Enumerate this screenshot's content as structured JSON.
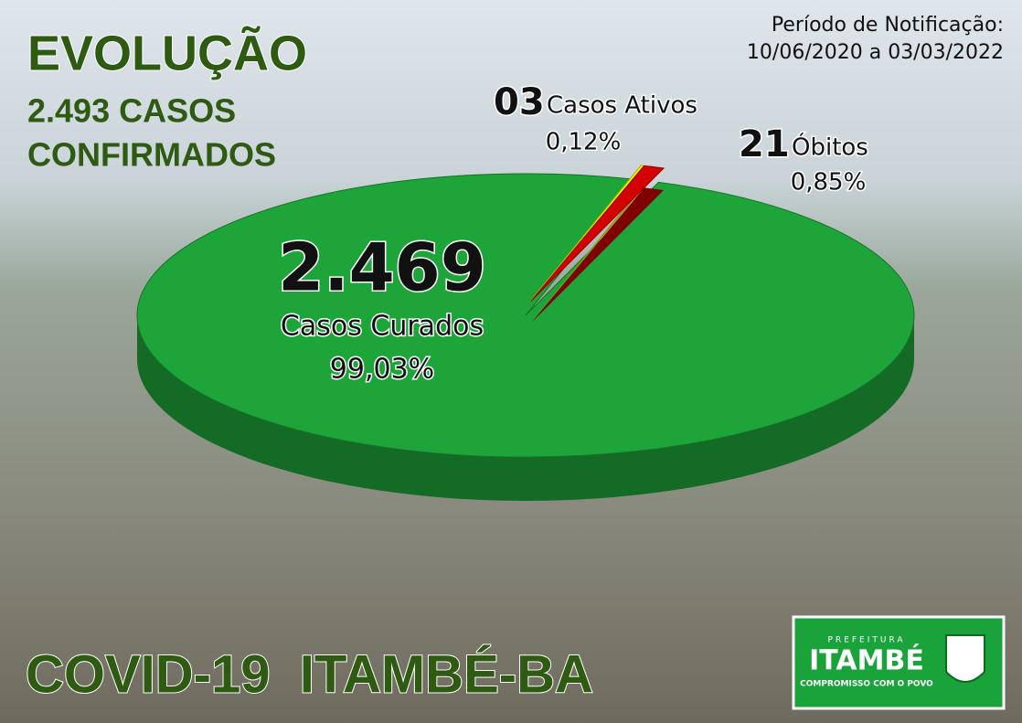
{
  "chart_data": {
    "type": "pie",
    "title": "EVOLUÇÃO",
    "subtitle_lines": [
      "2.493 CASOS",
      "CONFIRMADOS"
    ],
    "period_label": "Período de Notificação:",
    "period": "10/06/2020 a 03/03/2022",
    "footer": "COVID-19  ITAMBÉ-BA",
    "categories": [
      "Casos Curados",
      "Casos Ativos",
      "Óbitos"
    ],
    "values": [
      2469,
      3,
      21
    ],
    "value_labels": [
      "2.469",
      "03",
      "21"
    ],
    "percent_labels": [
      "99,03%",
      "0,12%",
      "0,85%"
    ],
    "colors": [
      "#1ea53a",
      "#ffff00",
      "#d40000"
    ]
  },
  "logo": {
    "top": "PREFEITURA",
    "name": "ITAMBÉ",
    "motto": "COMPROMISSO COM O POVO"
  }
}
